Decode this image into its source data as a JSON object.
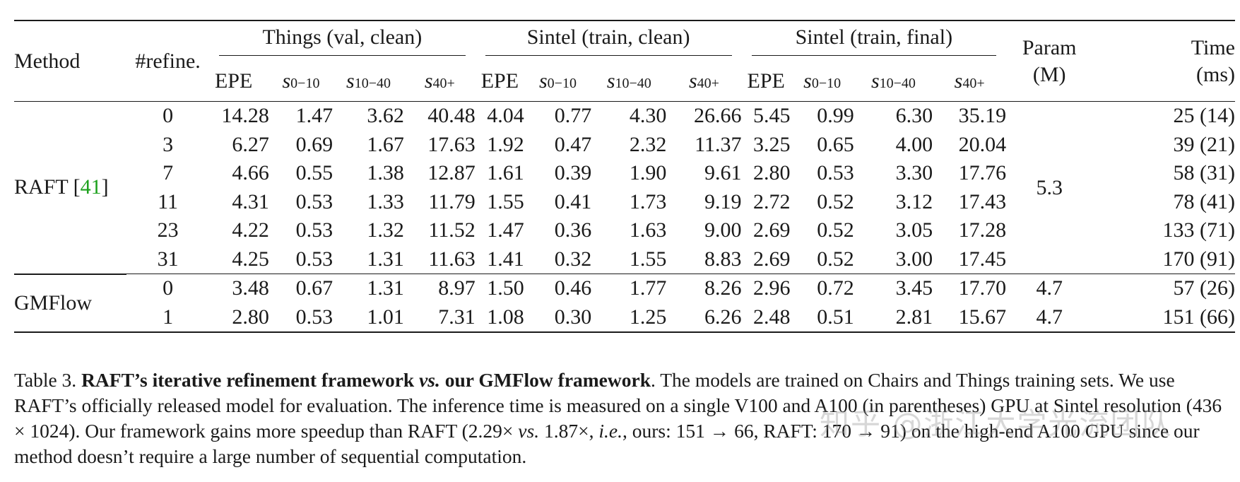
{
  "header": {
    "method": "Method",
    "refine": "#refine.",
    "groups": [
      "Things (val, clean)",
      "Sintel (train, clean)",
      "Sintel (train, final)"
    ],
    "param_line1": "Param",
    "param_line2": "(M)",
    "time_line1": "Time",
    "time_line2": "(ms)",
    "epe": "EPE",
    "s_symbol": "s",
    "s_subs": [
      "0−10",
      "10−40",
      "40+"
    ]
  },
  "raft": {
    "name": "RAFT [",
    "cite": "41",
    "close": "]",
    "param": "5.3",
    "rows": [
      {
        "refine": "0",
        "vals": [
          "14.28",
          "1.47",
          "3.62",
          "40.48",
          "4.04",
          "0.77",
          "4.30",
          "26.66",
          "5.45",
          "0.99",
          "6.30",
          "35.19"
        ],
        "time": "25 (14)"
      },
      {
        "refine": "3",
        "vals": [
          "6.27",
          "0.69",
          "1.67",
          "17.63",
          "1.92",
          "0.47",
          "2.32",
          "11.37",
          "3.25",
          "0.65",
          "4.00",
          "20.04"
        ],
        "time": "39 (21)"
      },
      {
        "refine": "7",
        "vals": [
          "4.66",
          "0.55",
          "1.38",
          "12.87",
          "1.61",
          "0.39",
          "1.90",
          "9.61",
          "2.80",
          "0.53",
          "3.30",
          "17.76"
        ],
        "time": "58 (31)"
      },
      {
        "refine": "11",
        "vals": [
          "4.31",
          "0.53",
          "1.33",
          "11.79",
          "1.55",
          "0.41",
          "1.73",
          "9.19",
          "2.72",
          "0.52",
          "3.12",
          "17.43"
        ],
        "time": "78 (41)"
      },
      {
        "refine": "23",
        "vals": [
          "4.22",
          "0.53",
          "1.32",
          "11.52",
          "1.47",
          "0.36",
          "1.63",
          "9.00",
          "2.69",
          "0.52",
          "3.05",
          "17.28"
        ],
        "time": "133 (71)"
      },
      {
        "refine": "31",
        "vals": [
          "4.25",
          "0.53",
          "1.31",
          "11.63",
          "1.41",
          "0.32",
          "1.55",
          "8.83",
          "2.69",
          "0.52",
          "3.00",
          "17.45"
        ],
        "time": "170 (91)"
      }
    ]
  },
  "gmflow": {
    "name": "GMFlow",
    "rows": [
      {
        "refine": "0",
        "vals": [
          "3.48",
          "0.67",
          "1.31",
          "8.97",
          "1.50",
          "0.46",
          "1.77",
          "8.26",
          "2.96",
          "0.72",
          "3.45",
          "17.70"
        ],
        "param": "4.7",
        "time": "57 (26)"
      },
      {
        "refine": "1",
        "vals": [
          "2.80",
          "0.53",
          "1.01",
          "7.31",
          "1.08",
          "0.30",
          "1.25",
          "6.26",
          "2.48",
          "0.51",
          "2.81",
          "15.67"
        ],
        "param": "4.7",
        "time": "151 (66)"
      }
    ]
  },
  "caption": {
    "label": "Table 3. ",
    "lead_a": "RAFT’s iterative refinement framework ",
    "lead_vs": "vs.",
    "lead_b": " our GMFlow framework",
    "body_1": ". The models are trained on Chairs and Things training sets. We use RAFT’s officially released model for evaluation. The inference time is measured on a single V100 and A100 (in parentheses) GPU at Sintel resolution (436 × 1024). Our framework gains more speedup than RAFT (2.29× ",
    "vs2": "vs.",
    "body_2": " 1.87×, ",
    "ie": "i.e.",
    "body_3": ", ours: 151 → 66, RAFT: 170 → 91) on the high-end A100 GPU since our method doesn’t require a large number of sequential computation."
  },
  "watermark": "知乎 @浙江大学光流团队"
}
